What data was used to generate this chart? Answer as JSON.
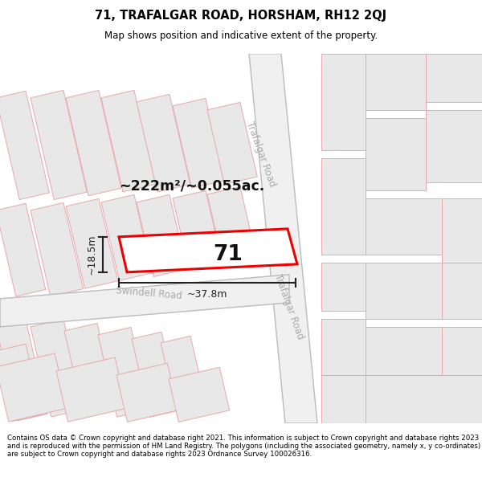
{
  "title": "71, TRAFALGAR ROAD, HORSHAM, RH12 2QJ",
  "subtitle": "Map shows position and indicative extent of the property.",
  "footer": "Contains OS data © Crown copyright and database right 2021. This information is subject to Crown copyright and database rights 2023 and is reproduced with the permission of HM Land Registry. The polygons (including the associated geometry, namely x, y co-ordinates) are subject to Crown copyright and database rights 2023 Ordnance Survey 100026316.",
  "map_bg": "#ffffff",
  "block_fill": "#e8e8e8",
  "block_stroke": "#e8a8a8",
  "road_fill": "#ffffff",
  "road_stroke": "#c0c0c0",
  "plot_stroke": "#ee0000",
  "plot_fill": "#ffffff",
  "dim_color": "#222222",
  "label_color": "#111111",
  "road_label_color": "#aaaaaa",
  "area_text": "~222m²/~0.055ac.",
  "plot_number": "71",
  "dim_width": "~37.8m",
  "dim_height": "~18.5m",
  "road1_label": "Swindell Road",
  "road2_label": "Trafalgar Road",
  "figsize": [
    6.0,
    6.25
  ],
  "dpi": 100
}
